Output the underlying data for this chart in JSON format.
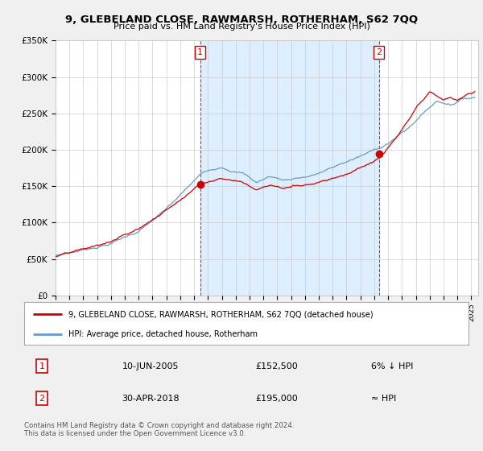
{
  "title": "9, GLEBELAND CLOSE, RAWMARSH, ROTHERHAM, S62 7QQ",
  "subtitle": "Price paid vs. HM Land Registry's House Price Index (HPI)",
  "legend_label_red": "9, GLEBELAND CLOSE, RAWMARSH, ROTHERHAM, S62 7QQ (detached house)",
  "legend_label_blue": "HPI: Average price, detached house, Rotherham",
  "transaction1_date": "10-JUN-2005",
  "transaction1_price": "£152,500",
  "transaction1_hpi": "6% ↓ HPI",
  "transaction2_date": "30-APR-2018",
  "transaction2_price": "£195,000",
  "transaction2_hpi": "≈ HPI",
  "vline1_x": 2005.44,
  "vline2_x": 2018.33,
  "marker1_x": 2005.44,
  "marker1_y": 152500,
  "marker2_x": 2018.33,
  "marker2_y": 195000,
  "ylim": [
    0,
    350000
  ],
  "xlim_left": 1995.0,
  "xlim_right": 2025.5,
  "footer": "Contains HM Land Registry data © Crown copyright and database right 2024.\nThis data is licensed under the Open Government Licence v3.0.",
  "background_color": "#f0f0f0",
  "plot_bg": "#ffffff",
  "shade_color": "#ddeeff",
  "red_color": "#cc0000",
  "blue_color": "#6699cc"
}
